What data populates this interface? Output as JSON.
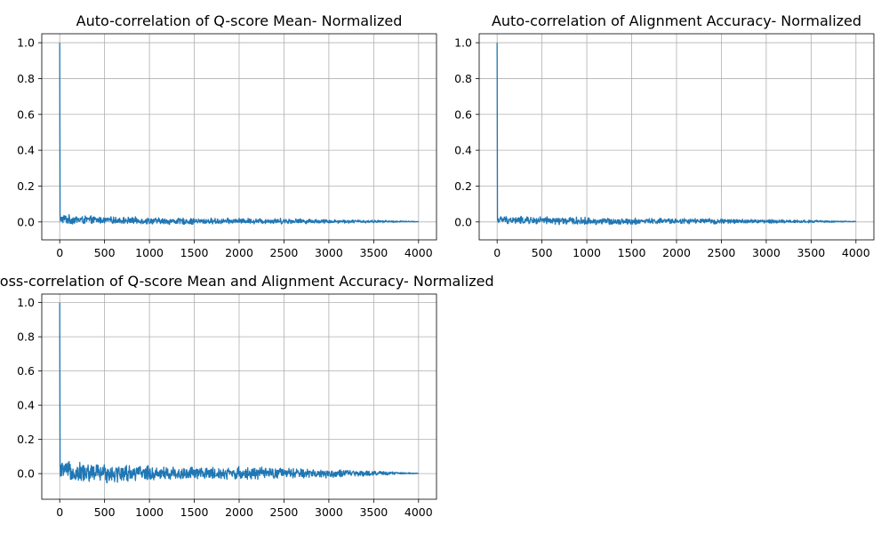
{
  "colors": {
    "line": "#1f77b4",
    "grid": "#b0b0b0",
    "axis": "#000000",
    "background": "#ffffff"
  },
  "chart_data": [
    {
      "type": "line",
      "title": "Auto-correlation of Q-score Mean- Normalized",
      "xlabel": "",
      "ylabel": "",
      "xlim": [
        -200,
        4200
      ],
      "ylim": [
        -0.1,
        1.05
      ],
      "xticks": [
        0,
        500,
        1000,
        1500,
        2000,
        2500,
        3000,
        3500,
        4000
      ],
      "xtick_labels": [
        "0",
        "500",
        "1000",
        "1500",
        "2000",
        "2500",
        "3000",
        "3500",
        "4000"
      ],
      "yticks": [
        0.0,
        0.2,
        0.4,
        0.6,
        0.8,
        1.0
      ],
      "ytick_labels": [
        "0.0",
        "0.2",
        "0.4",
        "0.6",
        "0.8",
        "1.0"
      ],
      "grid": true,
      "series": [
        {
          "color": "#1f77b4",
          "x": [
            0,
            3,
            6,
            10,
            50,
            100,
            200,
            300,
            400,
            500,
            700,
            900,
            1100,
            1300,
            1500,
            1800,
            2000,
            2300,
            2500,
            3000,
            3500,
            4000
          ],
          "y": [
            1.0,
            0.04,
            0.0,
            0.01,
            0.02,
            0.01,
            0.01,
            0.01,
            0.01,
            0.01,
            0.01,
            0.01,
            0.005,
            0.005,
            0.005,
            0.005,
            0.005,
            0.005,
            0.005,
            0.005,
            0.003,
            0.0
          ],
          "noise_envelope": {
            "x": [
              0,
              500,
              1000,
              1500,
              2000,
              2500,
              3000,
              3500,
              4000
            ],
            "upper": [
              0.06,
              0.04,
              0.035,
              0.03,
              0.03,
              0.03,
              0.02,
              0.015,
              0.005
            ],
            "lower": [
              -0.03,
              -0.02,
              -0.025,
              -0.025,
              -0.02,
              -0.02,
              -0.015,
              -0.01,
              0.0
            ]
          }
        }
      ]
    },
    {
      "type": "line",
      "title": "Auto-correlation of Alignment Accuracy- Normalized",
      "xlabel": "",
      "ylabel": "",
      "xlim": [
        -200,
        4200
      ],
      "ylim": [
        -0.1,
        1.05
      ],
      "xticks": [
        0,
        500,
        1000,
        1500,
        2000,
        2500,
        3000,
        3500,
        4000
      ],
      "xtick_labels": [
        "0",
        "500",
        "1000",
        "1500",
        "2000",
        "2500",
        "3000",
        "3500",
        "4000"
      ],
      "yticks": [
        0.0,
        0.2,
        0.4,
        0.6,
        0.8,
        1.0
      ],
      "ytick_labels": [
        "0.0",
        "0.2",
        "0.4",
        "0.6",
        "0.8",
        "1.0"
      ],
      "grid": true,
      "series": [
        {
          "color": "#1f77b4",
          "x": [
            0,
            3,
            6,
            10,
            50,
            100,
            200,
            300,
            400,
            500,
            700,
            900,
            1100,
            1300,
            1500,
            1800,
            2000,
            2300,
            2500,
            3000,
            3500,
            4000
          ],
          "y": [
            1.0,
            0.03,
            0.0,
            0.01,
            0.01,
            0.01,
            0.01,
            0.01,
            0.01,
            0.01,
            0.01,
            0.01,
            0.005,
            0.005,
            0.005,
            0.005,
            0.005,
            0.005,
            0.005,
            0.005,
            0.003,
            0.0
          ],
          "noise_envelope": {
            "x": [
              0,
              500,
              1000,
              1500,
              2000,
              2500,
              3000,
              3500,
              4000
            ],
            "upper": [
              0.045,
              0.04,
              0.035,
              0.03,
              0.03,
              0.025,
              0.02,
              0.015,
              0.005
            ],
            "lower": [
              -0.02,
              -0.03,
              -0.03,
              -0.025,
              -0.02,
              -0.02,
              -0.015,
              -0.01,
              0.0
            ]
          }
        }
      ]
    },
    {
      "type": "line",
      "title": "Cross-correlation of Q-score Mean and Alignment Accuracy- Normalized",
      "xlabel": "",
      "ylabel": "",
      "xlim": [
        -200,
        4200
      ],
      "ylim": [
        -0.15,
        1.05
      ],
      "xticks": [
        0,
        500,
        1000,
        1500,
        2000,
        2500,
        3000,
        3500,
        4000
      ],
      "xtick_labels": [
        "0",
        "500",
        "1000",
        "1500",
        "2000",
        "2500",
        "3000",
        "3500",
        "4000"
      ],
      "yticks": [
        0.0,
        0.2,
        0.4,
        0.6,
        0.8,
        1.0
      ],
      "ytick_labels": [
        "0.0",
        "0.2",
        "0.4",
        "0.6",
        "0.8",
        "1.0"
      ],
      "grid": true,
      "series": [
        {
          "color": "#1f77b4",
          "x": [
            0,
            3,
            6,
            10,
            50,
            100,
            200,
            300,
            400,
            500,
            700,
            900,
            1100,
            1300,
            1500,
            1800,
            2000,
            2300,
            2500,
            3000,
            3500,
            4000
          ],
          "y": [
            1.0,
            0.1,
            -0.05,
            0.02,
            0.02,
            0.01,
            0.01,
            0.01,
            0.01,
            0.01,
            0.01,
            0.01,
            0.005,
            0.005,
            0.005,
            0.005,
            0.005,
            0.005,
            0.005,
            0.0,
            0.0,
            0.0
          ],
          "noise_envelope": {
            "x": [
              0,
              300,
              500,
              1000,
              1500,
              2000,
              2500,
              3000,
              3500,
              4000
            ],
            "upper": [
              0.1,
              0.1,
              0.09,
              0.07,
              0.06,
              0.06,
              0.05,
              0.04,
              0.025,
              0.005
            ],
            "lower": [
              -0.06,
              -0.1,
              -0.09,
              -0.07,
              -0.06,
              -0.06,
              -0.05,
              -0.04,
              -0.02,
              0.0
            ]
          }
        }
      ]
    }
  ]
}
